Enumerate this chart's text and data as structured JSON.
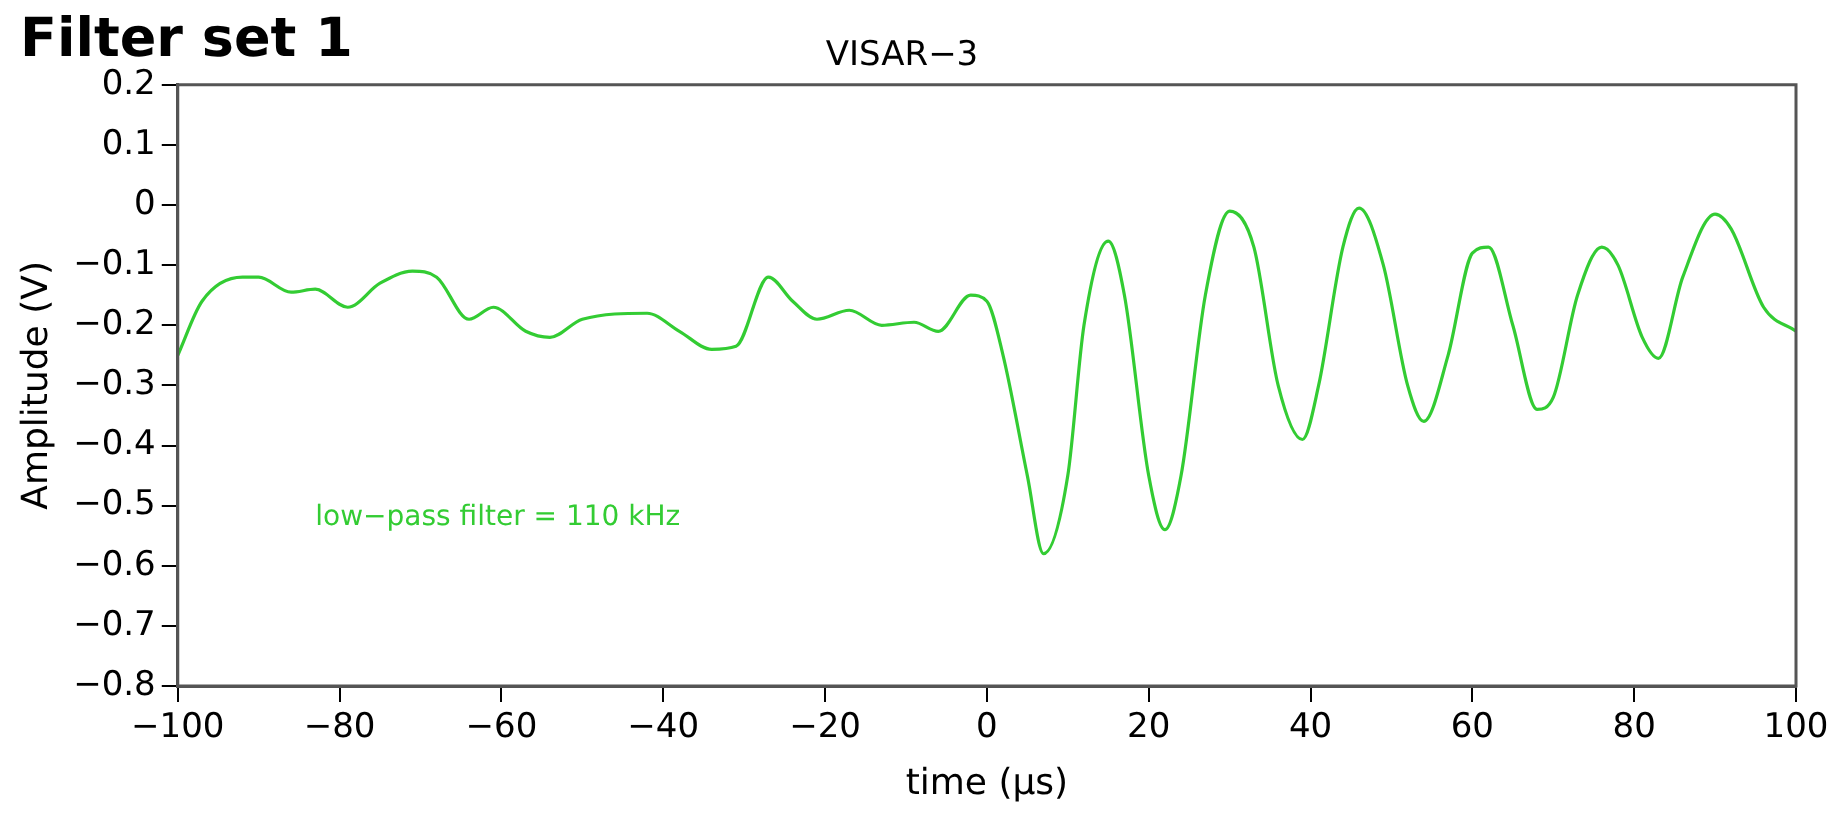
{
  "chart_data": {
    "type": "line",
    "title": "Filter set 1",
    "subtitle": "VISAR−3",
    "xlabel": "time (μs)",
    "ylabel": "Amplitude (V)",
    "annotations": [
      "low−pass filter = 110 kHz"
    ],
    "x": [
      -100,
      -97,
      -92,
      -90,
      -86,
      -83,
      -79,
      -75,
      -71,
      -68,
      -64,
      -61,
      -57,
      -54,
      -50,
      -42,
      -38,
      -34,
      -31,
      -27,
      -24,
      -21,
      -17,
      -13,
      -9,
      -6,
      -2,
      0,
      2,
      5,
      7,
      10,
      12,
      15,
      17,
      20,
      22,
      24,
      27,
      30,
      33,
      36,
      39,
      41,
      44,
      46,
      49,
      52,
      54,
      57,
      60,
      62,
      65,
      68,
      70,
      73,
      76,
      78,
      81,
      83,
      86,
      90,
      92,
      96,
      100
    ],
    "series": [
      {
        "color": "#33cc33",
        "values": [
          -0.25,
          -0.16,
          -0.12,
          -0.12,
          -0.145,
          -0.14,
          -0.17,
          -0.13,
          -0.11,
          -0.12,
          -0.19,
          -0.17,
          -0.21,
          -0.22,
          -0.19,
          -0.18,
          -0.21,
          -0.24,
          -0.235,
          -0.12,
          -0.16,
          -0.19,
          -0.175,
          -0.2,
          -0.195,
          -0.21,
          -0.15,
          -0.16,
          -0.25,
          -0.45,
          -0.58,
          -0.45,
          -0.2,
          -0.06,
          -0.15,
          -0.45,
          -0.54,
          -0.45,
          -0.15,
          -0.01,
          -0.07,
          -0.3,
          -0.39,
          -0.3,
          -0.07,
          -0.005,
          -0.1,
          -0.3,
          -0.36,
          -0.25,
          -0.08,
          -0.07,
          -0.2,
          -0.34,
          -0.32,
          -0.15,
          -0.07,
          -0.1,
          -0.22,
          -0.255,
          -0.12,
          -0.015,
          -0.04,
          -0.17,
          -0.21
        ]
      }
    ],
    "xlim": [
      -100,
      100
    ],
    "xticks": [
      -100,
      -80,
      -60,
      -40,
      -20,
      0,
      20,
      40,
      60,
      80,
      100
    ],
    "ylim": [
      -0.8,
      0.2
    ],
    "yticks": [
      -0.8,
      -0.7,
      -0.6,
      -0.5,
      -0.4,
      -0.3,
      -0.2,
      -0.1,
      0,
      0.1,
      0.2
    ],
    "grid": false,
    "legend": false,
    "marker": "none",
    "line_style": "solid"
  }
}
